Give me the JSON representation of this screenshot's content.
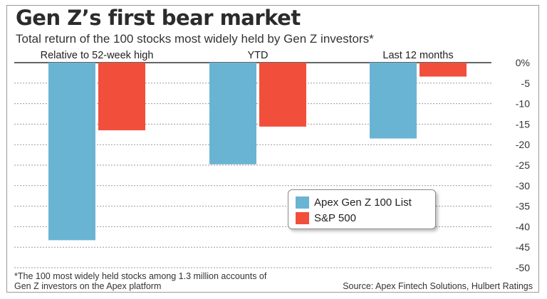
{
  "title": "Gen Z’s first bear market",
  "subtitle": "Total return of the 100 stocks most widely held by Gen Z investors*",
  "footnote": "*The 100 most widely held stocks among 1.3 million accounts of Gen Z investors on the Apex platform",
  "source": "Source: Apex Fintech Solutions, Hulbert Ratings",
  "chart_data": {
    "type": "bar",
    "categories": [
      "Relative to 52-week high",
      "YTD",
      "Last 12 months"
    ],
    "series": [
      {
        "name": "Apex Gen Z 100 List",
        "values": [
          -43.3,
          -24.8,
          -18.5
        ],
        "color": "#6ab4d3"
      },
      {
        "name": "S&P 500",
        "values": [
          -16.5,
          -15.6,
          -3.4
        ],
        "color": "#f24e3c"
      }
    ],
    "ylim": [
      -50,
      0
    ],
    "yticks": [
      "0%",
      "-5",
      "-10",
      "-15",
      "-20",
      "-25",
      "-30",
      "-35",
      "-40",
      "-45",
      "-50"
    ],
    "ytick_values": [
      0,
      -5,
      -10,
      -15,
      -20,
      -25,
      -30,
      -35,
      -40,
      -45,
      -50
    ],
    "grid": true,
    "legend_position": "lower-right"
  }
}
